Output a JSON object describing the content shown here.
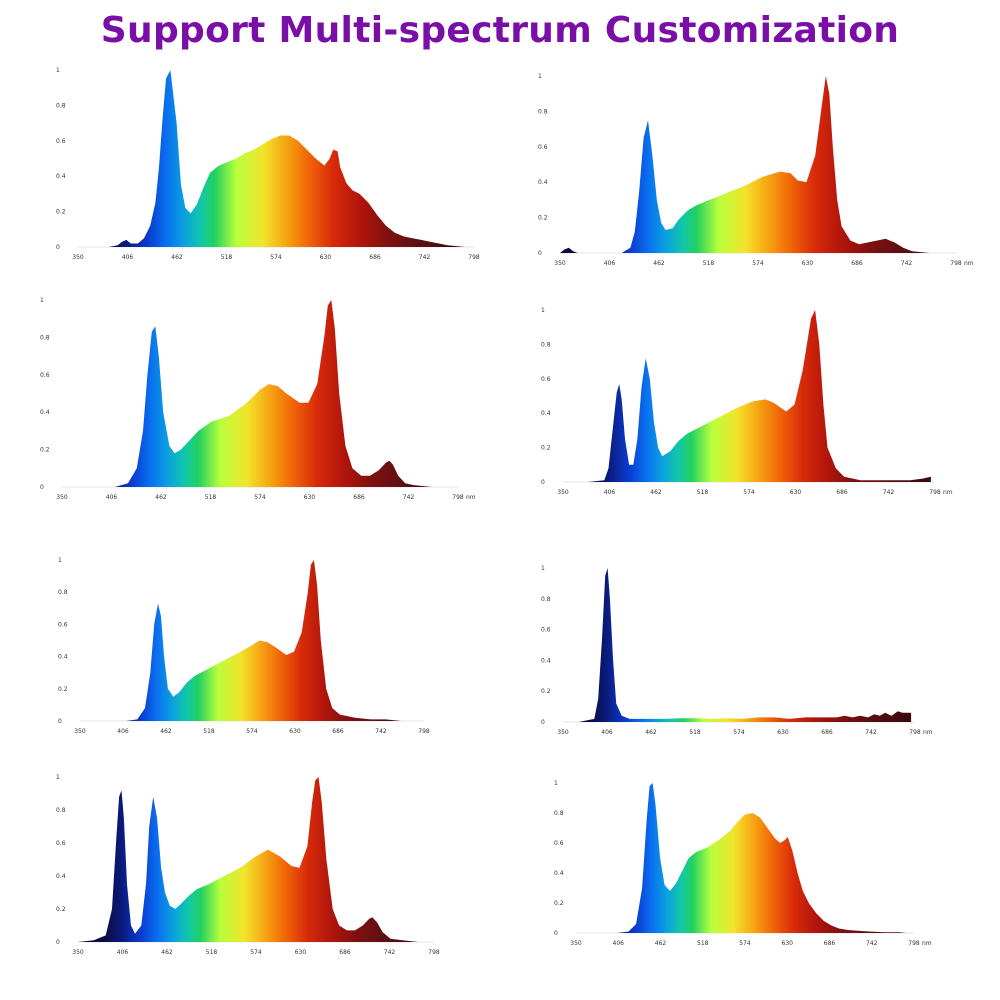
{
  "title": "Support Multi-spectrum Customization",
  "chart_data": [
    {
      "type": "area",
      "title": "",
      "xlabel": "",
      "ylabel": "",
      "x_ticks": [
        "350",
        "406",
        "462",
        "518",
        "574",
        "630",
        "686",
        "742",
        "798"
      ],
      "x_unit": "",
      "y_ticks": [
        "0",
        "0.2",
        "0.4",
        "0.6",
        "0.8",
        "1"
      ],
      "xlim": [
        350,
        800
      ],
      "ylim": [
        0,
        1
      ],
      "grid": false,
      "legend": "none",
      "series": [
        {
          "x": [
            370,
            385,
            395,
            400,
            405,
            410,
            418,
            425,
            432,
            438,
            442,
            446,
            450,
            455,
            462,
            467,
            472,
            478,
            485,
            492,
            500,
            510,
            520,
            530,
            540,
            550,
            560,
            570,
            580,
            590,
            600,
            610,
            620,
            630,
            636,
            640,
            645,
            648,
            655,
            662,
            670,
            680,
            690,
            700,
            710,
            720,
            730,
            740,
            750,
            760,
            770,
            780,
            790
          ],
          "y": [
            0,
            0,
            0.01,
            0.03,
            0.04,
            0.02,
            0.02,
            0.05,
            0.12,
            0.25,
            0.45,
            0.72,
            0.95,
            1.0,
            0.7,
            0.35,
            0.22,
            0.19,
            0.24,
            0.33,
            0.42,
            0.46,
            0.48,
            0.5,
            0.53,
            0.55,
            0.58,
            0.61,
            0.63,
            0.63,
            0.6,
            0.55,
            0.5,
            0.46,
            0.5,
            0.55,
            0.54,
            0.45,
            0.36,
            0.32,
            0.3,
            0.25,
            0.18,
            0.12,
            0.08,
            0.06,
            0.05,
            0.04,
            0.03,
            0.02,
            0.01,
            0.005,
            0
          ]
        }
      ]
    },
    {
      "type": "area",
      "title": "",
      "xlabel": "",
      "ylabel": "",
      "x_ticks": [
        "350",
        "406",
        "462",
        "518",
        "574",
        "630",
        "686",
        "742",
        "798"
      ],
      "x_unit": "nm",
      "y_ticks": [
        "0",
        "0.2",
        "0.4",
        "0.6",
        "0.8",
        "1"
      ],
      "xlim": [
        350,
        800
      ],
      "ylim": [
        0,
        1
      ],
      "grid": false,
      "legend": "none",
      "series": [
        {
          "x": [
            350,
            355,
            360,
            365,
            370,
            380,
            400,
            420,
            430,
            435,
            440,
            445,
            450,
            455,
            460,
            465,
            470,
            478,
            485,
            495,
            505,
            520,
            540,
            560,
            580,
            600,
            612,
            620,
            630,
            640,
            648,
            652,
            656,
            660,
            665,
            670,
            680,
            690,
            700,
            710,
            720,
            730,
            740,
            750,
            770,
            790
          ],
          "y": [
            0,
            0.02,
            0.03,
            0.01,
            0,
            0,
            0,
            0,
            0.03,
            0.12,
            0.35,
            0.65,
            0.75,
            0.55,
            0.3,
            0.17,
            0.13,
            0.14,
            0.19,
            0.24,
            0.27,
            0.3,
            0.34,
            0.38,
            0.43,
            0.46,
            0.45,
            0.41,
            0.4,
            0.55,
            0.85,
            1.0,
            0.9,
            0.6,
            0.3,
            0.15,
            0.07,
            0.05,
            0.06,
            0.07,
            0.08,
            0.06,
            0.03,
            0.01,
            0,
            0
          ]
        }
      ]
    },
    {
      "type": "area",
      "title": "",
      "xlabel": "",
      "ylabel": "",
      "x_ticks": [
        "350",
        "406",
        "462",
        "518",
        "574",
        "630",
        "686",
        "742",
        "798"
      ],
      "x_unit": "nm",
      "y_ticks": [
        "0",
        "0.2",
        "0.4",
        "0.6",
        "0.8",
        "1"
      ],
      "xlim": [
        350,
        800
      ],
      "ylim": [
        0,
        1
      ],
      "grid": false,
      "legend": "none",
      "series": [
        {
          "x": [
            350,
            380,
            410,
            425,
            435,
            442,
            447,
            452,
            456,
            460,
            465,
            472,
            478,
            485,
            495,
            505,
            520,
            540,
            560,
            575,
            585,
            595,
            605,
            620,
            630,
            640,
            648,
            652,
            656,
            660,
            665,
            672,
            680,
            690,
            700,
            710,
            718,
            722,
            726,
            732,
            740,
            750,
            770,
            790
          ],
          "y": [
            0,
            0,
            0,
            0.02,
            0.1,
            0.3,
            0.6,
            0.83,
            0.86,
            0.7,
            0.4,
            0.22,
            0.18,
            0.2,
            0.25,
            0.3,
            0.35,
            0.38,
            0.45,
            0.52,
            0.55,
            0.54,
            0.5,
            0.45,
            0.45,
            0.55,
            0.8,
            0.97,
            1.0,
            0.85,
            0.5,
            0.22,
            0.1,
            0.06,
            0.06,
            0.09,
            0.13,
            0.14,
            0.12,
            0.06,
            0.02,
            0.01,
            0,
            0
          ]
        }
      ]
    },
    {
      "type": "area",
      "title": "",
      "xlabel": "",
      "ylabel": "",
      "x_ticks": [
        "350",
        "406",
        "462",
        "518",
        "574",
        "630",
        "686",
        "742",
        "798"
      ],
      "x_unit": "nm",
      "y_ticks": [
        "0",
        "0.2",
        "0.4",
        "0.6",
        "0.8",
        "1"
      ],
      "xlim": [
        350,
        800
      ],
      "ylim": [
        0,
        1
      ],
      "grid": false,
      "legend": "none",
      "series": [
        {
          "x": [
            350,
            380,
            400,
            405,
            410,
            415,
            418,
            421,
            425,
            430,
            435,
            440,
            445,
            450,
            455,
            460,
            465,
            470,
            480,
            490,
            500,
            520,
            540,
            560,
            580,
            595,
            605,
            620,
            630,
            640,
            650,
            655,
            660,
            665,
            670,
            680,
            690,
            710,
            730,
            750,
            770,
            785,
            795
          ],
          "y": [
            0,
            0,
            0.01,
            0.08,
            0.3,
            0.52,
            0.57,
            0.48,
            0.25,
            0.1,
            0.1,
            0.25,
            0.55,
            0.72,
            0.6,
            0.35,
            0.2,
            0.15,
            0.18,
            0.24,
            0.28,
            0.33,
            0.38,
            0.43,
            0.47,
            0.48,
            0.46,
            0.41,
            0.45,
            0.65,
            0.95,
            1.0,
            0.8,
            0.45,
            0.2,
            0.08,
            0.03,
            0.01,
            0.01,
            0.01,
            0.01,
            0.02,
            0.03
          ]
        }
      ]
    },
    {
      "type": "area",
      "title": "",
      "xlabel": "",
      "ylabel": "",
      "x_ticks": [
        "350",
        "406",
        "462",
        "518",
        "574",
        "630",
        "686",
        "742",
        "798"
      ],
      "x_unit": "",
      "y_ticks": [
        "0",
        "0.2",
        "0.4",
        "0.6",
        "0.8",
        "1"
      ],
      "xlim": [
        350,
        800
      ],
      "ylim": [
        0,
        1
      ],
      "grid": false,
      "legend": "none",
      "series": [
        {
          "x": [
            350,
            380,
            410,
            425,
            435,
            442,
            447,
            452,
            456,
            460,
            465,
            472,
            480,
            490,
            500,
            520,
            540,
            560,
            575,
            585,
            595,
            605,
            620,
            630,
            640,
            648,
            652,
            656,
            660,
            665,
            672,
            680,
            690,
            710,
            730,
            750,
            770,
            790
          ],
          "y": [
            0,
            0,
            0,
            0.01,
            0.08,
            0.3,
            0.6,
            0.73,
            0.65,
            0.4,
            0.2,
            0.15,
            0.18,
            0.24,
            0.28,
            0.33,
            0.38,
            0.43,
            0.47,
            0.5,
            0.49,
            0.46,
            0.41,
            0.43,
            0.55,
            0.8,
            0.97,
            1.0,
            0.85,
            0.5,
            0.2,
            0.08,
            0.04,
            0.02,
            0.01,
            0.01,
            0,
            0
          ]
        }
      ]
    },
    {
      "type": "area",
      "title": "",
      "xlabel": "",
      "ylabel": "",
      "x_ticks": [
        "350",
        "406",
        "462",
        "518",
        "574",
        "630",
        "686",
        "742",
        "798"
      ],
      "x_unit": "nm",
      "y_ticks": [
        "0",
        "0.2",
        "0.4",
        "0.6",
        "0.8",
        "1"
      ],
      "xlim": [
        350,
        800
      ],
      "ylim": [
        0,
        1
      ],
      "grid": false,
      "legend": "none",
      "series": [
        {
          "x": [
            350,
            370,
            390,
            395,
            400,
            404,
            407,
            410,
            414,
            418,
            425,
            435,
            445,
            460,
            480,
            500,
            520,
            540,
            560,
            580,
            600,
            620,
            640,
            660,
            680,
            700,
            710,
            720,
            730,
            740,
            748,
            755,
            762,
            770,
            778,
            784,
            790,
            795
          ],
          "y": [
            0,
            0,
            0.02,
            0.15,
            0.55,
            0.95,
            1.0,
            0.8,
            0.4,
            0.12,
            0.04,
            0.02,
            0.02,
            0.02,
            0.02,
            0.025,
            0.025,
            0.02,
            0.025,
            0.02,
            0.03,
            0.03,
            0.02,
            0.03,
            0.03,
            0.03,
            0.04,
            0.03,
            0.04,
            0.03,
            0.05,
            0.04,
            0.06,
            0.04,
            0.07,
            0.06,
            0.06,
            0.06
          ]
        }
      ]
    },
    {
      "type": "area",
      "title": "",
      "xlabel": "",
      "ylabel": "",
      "x_ticks": [
        "350",
        "406",
        "462",
        "518",
        "574",
        "630",
        "686",
        "742",
        "798"
      ],
      "x_unit": "",
      "y_ticks": [
        "0",
        "0.2",
        "0.4",
        "0.6",
        "0.8",
        "1"
      ],
      "xlim": [
        350,
        800
      ],
      "ylim": [
        0,
        1
      ],
      "grid": false,
      "legend": "none",
      "series": [
        {
          "x": [
            350,
            370,
            385,
            393,
            398,
            402,
            405,
            408,
            412,
            417,
            422,
            430,
            436,
            440,
            445,
            450,
            455,
            460,
            466,
            473,
            480,
            490,
            500,
            515,
            535,
            555,
            575,
            590,
            605,
            620,
            630,
            640,
            646,
            650,
            654,
            658,
            664,
            672,
            680,
            690,
            700,
            710,
            718,
            722,
            728,
            735,
            745,
            760,
            780
          ],
          "y": [
            0,
            0.01,
            0.04,
            0.2,
            0.6,
            0.88,
            0.92,
            0.75,
            0.35,
            0.1,
            0.05,
            0.1,
            0.35,
            0.7,
            0.88,
            0.75,
            0.45,
            0.3,
            0.22,
            0.2,
            0.23,
            0.28,
            0.32,
            0.35,
            0.4,
            0.45,
            0.52,
            0.56,
            0.52,
            0.46,
            0.45,
            0.58,
            0.85,
            0.98,
            1.0,
            0.85,
            0.5,
            0.2,
            0.1,
            0.07,
            0.07,
            0.1,
            0.14,
            0.15,
            0.12,
            0.06,
            0.02,
            0.01,
            0
          ]
        }
      ]
    },
    {
      "type": "area",
      "title": "",
      "xlabel": "",
      "ylabel": "",
      "x_ticks": [
        "350",
        "406",
        "462",
        "518",
        "574",
        "630",
        "686",
        "742",
        "798"
      ],
      "x_unit": "nm",
      "y_ticks": [
        "0",
        "0.2",
        "0.4",
        "0.6",
        "0.8",
        "1"
      ],
      "xlim": [
        350,
        800
      ],
      "ylim": [
        0,
        1
      ],
      "grid": false,
      "legend": "none",
      "series": [
        {
          "x": [
            350,
            380,
            405,
            420,
            430,
            438,
            444,
            448,
            452,
            456,
            462,
            468,
            475,
            483,
            492,
            500,
            510,
            525,
            540,
            555,
            565,
            575,
            585,
            595,
            605,
            615,
            622,
            628,
            632,
            638,
            645,
            652,
            660,
            670,
            680,
            690,
            700,
            712,
            725,
            740,
            760,
            780,
            790
          ],
          "y": [
            0,
            0,
            0,
            0.01,
            0.06,
            0.3,
            0.75,
            0.98,
            1.0,
            0.85,
            0.5,
            0.32,
            0.28,
            0.33,
            0.42,
            0.5,
            0.54,
            0.57,
            0.62,
            0.68,
            0.74,
            0.79,
            0.8,
            0.77,
            0.7,
            0.63,
            0.6,
            0.62,
            0.64,
            0.55,
            0.4,
            0.28,
            0.2,
            0.13,
            0.08,
            0.05,
            0.03,
            0.02,
            0.015,
            0.01,
            0.005,
            0.005,
            0
          ]
        }
      ]
    }
  ]
}
